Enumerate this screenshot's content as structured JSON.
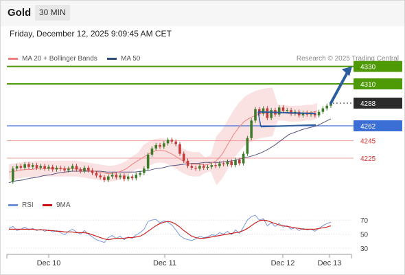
{
  "header": {
    "symbol": "Gold",
    "timeframe": "30 MIN",
    "datetime": "Friday, December 12, 2025 9:09:45 AM CET"
  },
  "legend": {
    "ma20_label": "MA 20 + Bollinger Bands",
    "ma50_label": "MA 50",
    "credit": "Research © 2025 Trading Central"
  },
  "rsi_legend": {
    "rsi_label": "RSI",
    "ma9_label": "9MA"
  },
  "colors": {
    "resistance": "#4e9a06",
    "pivot": "#3b6fd6",
    "support": "#d93030",
    "current": "#2b2b2b",
    "ma20": "#f08080",
    "ma50": "#555580",
    "band_fill": "#fbe0e0",
    "candle_up": "#3f7a2a",
    "candle_down": "#c23a3a",
    "arrow": "#2a5c9e",
    "rsi": "#6a8fd8",
    "ma9": "#cc2222"
  },
  "chart_data": [
    {
      "type": "candlestick",
      "title": "",
      "x_ticks": [
        "Dec 10",
        "Dec 11",
        "Dec 12",
        "Dec 13"
      ],
      "ylim": [
        4180,
        4345
      ],
      "grid": false,
      "legend_placement": "top-left",
      "levels": [
        {
          "label": "4330",
          "value": 4330,
          "kind": "resistance"
        },
        {
          "label": "4310",
          "value": 4310,
          "kind": "resistance"
        },
        {
          "label": "4288",
          "value": 4288,
          "kind": "current"
        },
        {
          "label": "4262",
          "value": 4262,
          "kind": "pivot"
        },
        {
          "label": "4245",
          "value": 4245,
          "kind": "support"
        },
        {
          "label": "4225",
          "value": 4225,
          "kind": "support"
        }
      ],
      "price_path": [
        4198,
        4213,
        4216,
        4214,
        4218,
        4215,
        4217,
        4214,
        4216,
        4213,
        4215,
        4212,
        4214,
        4213,
        4211,
        4213,
        4216,
        4212,
        4210,
        4214,
        4211,
        4208,
        4205,
        4203,
        4200,
        4204,
        4206,
        4203,
        4205,
        4201,
        4204,
        4202,
        4206,
        4208,
        4213,
        4229,
        4236,
        4240,
        4238,
        4242,
        4246,
        4244,
        4241,
        4230,
        4222,
        4216,
        4214,
        4213,
        4216,
        4214,
        4215,
        4217,
        4216,
        4219,
        4218,
        4221,
        4217,
        4223,
        4219,
        4230,
        4248,
        4268,
        4281,
        4276,
        4282,
        4271,
        4280,
        4275,
        4283,
        4279,
        4280,
        4276,
        4278,
        4274,
        4277,
        4275,
        4276,
        4274,
        4278,
        4282,
        4285,
        4288
      ],
      "ma20_path": [
        4209,
        4210,
        4211,
        4212,
        4212,
        4213,
        4213,
        4213,
        4213,
        4213,
        4213,
        4213,
        4213,
        4212,
        4211,
        4210,
        4209,
        4208,
        4207,
        4208,
        4210,
        4213,
        4218,
        4222,
        4226,
        4230,
        4233,
        4234,
        4233,
        4230,
        4226,
        4222,
        4219,
        4218,
        4218,
        4217,
        4219,
        4222,
        4229,
        4240,
        4251,
        4260,
        4267,
        4271,
        4274,
        4276,
        4277,
        4278,
        4277,
        4277,
        4276,
        4276,
        4276,
        4277,
        4277,
        4279
      ],
      "ma50_path": [
        4197,
        4199,
        4200,
        4202,
        4203,
        4205,
        4206,
        4208,
        4209,
        4210,
        4210,
        4210,
        4210,
        4210,
        4209,
        4209,
        4209,
        4209,
        4209,
        4210,
        4211,
        4213,
        4214,
        4216,
        4217,
        4218,
        4219,
        4219,
        4220,
        4220,
        4220,
        4221,
        4222,
        4224,
        4226,
        4228,
        4231,
        4235,
        4240,
        4246,
        4252,
        4255,
        4258,
        4260,
        4262,
        4266,
        4270
      ],
      "forecast_target": 4330
    },
    {
      "type": "line",
      "title": "",
      "ylim": [
        25,
        75
      ],
      "y_ticks": [
        "70",
        "50",
        "30"
      ],
      "series": [
        {
          "name": "RSI",
          "values": [
            58,
            61,
            55,
            57,
            60,
            56,
            58,
            55,
            57,
            54,
            56,
            53,
            55,
            52,
            49,
            54,
            57,
            53,
            50,
            55,
            50,
            46,
            42,
            40,
            38,
            45,
            48,
            44,
            47,
            42,
            46,
            44,
            49,
            52,
            57,
            68,
            70,
            71,
            66,
            69,
            67,
            63,
            56,
            48,
            44,
            42,
            41,
            43,
            47,
            45,
            46,
            49,
            48,
            52,
            50,
            54,
            49,
            56,
            51,
            60,
            70,
            75,
            77,
            70,
            72,
            62,
            66,
            61,
            65,
            60,
            62,
            57,
            59,
            55,
            58,
            56,
            57,
            54,
            58,
            62,
            65,
            67
          ]
        },
        {
          "name": "9MA",
          "values": [
            57,
            57,
            57,
            57,
            57,
            57,
            57,
            56,
            56,
            56,
            55,
            55,
            54,
            54,
            53,
            53,
            53,
            52,
            52,
            52,
            51,
            49,
            47,
            45,
            43,
            42,
            43,
            44,
            44,
            44,
            45,
            45,
            46,
            47,
            50,
            54,
            58,
            62,
            65,
            67,
            68,
            67,
            64,
            60,
            55,
            51,
            47,
            45,
            44,
            44,
            45,
            46,
            47,
            48,
            49,
            50,
            51,
            52,
            53,
            55,
            58,
            62,
            66,
            69,
            70,
            69,
            67,
            65,
            63,
            62,
            61,
            60,
            59,
            58,
            57,
            57,
            57,
            57,
            58,
            59,
            60,
            62
          ]
        }
      ]
    }
  ]
}
